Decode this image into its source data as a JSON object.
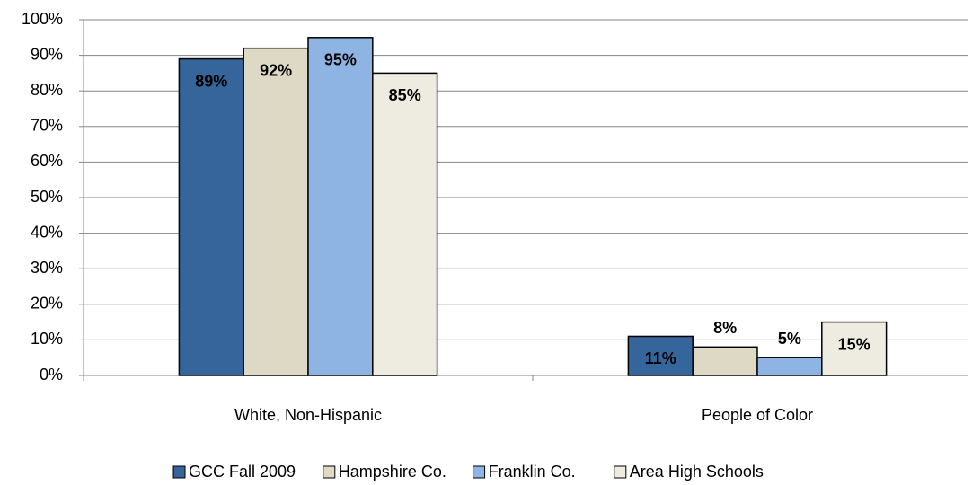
{
  "chart_data": {
    "type": "bar",
    "categories": [
      "White, Non-Hispanic",
      "People of Color"
    ],
    "series": [
      {
        "name": "GCC Fall 2009",
        "color": "#35659a",
        "values": [
          89,
          11
        ],
        "value_labels": [
          "89%",
          "11%"
        ]
      },
      {
        "name": "Hampshire Co.",
        "color": "#ddd9c4",
        "values": [
          92,
          8
        ],
        "value_labels": [
          "92%",
          "8%"
        ]
      },
      {
        "name": "Franklin Co.",
        "color": "#8eb4e3",
        "values": [
          95,
          5
        ],
        "value_labels": [
          "95%",
          "5%"
        ]
      },
      {
        "name": "Area High Schools",
        "color": "#eeece1",
        "values": [
          85,
          15
        ],
        "value_labels": [
          "85%",
          "15%"
        ]
      }
    ],
    "ylim": [
      0,
      100
    ],
    "yticks": [
      {
        "value": 0,
        "label": "0%"
      },
      {
        "value": 10,
        "label": "10%"
      },
      {
        "value": 20,
        "label": "20%"
      },
      {
        "value": 30,
        "label": "30%"
      },
      {
        "value": 40,
        "label": "40%"
      },
      {
        "value": 50,
        "label": "50%"
      },
      {
        "value": 60,
        "label": "60%"
      },
      {
        "value": 70,
        "label": "70%"
      },
      {
        "value": 80,
        "label": "80%"
      },
      {
        "value": 90,
        "label": "90%"
      },
      {
        "value": 100,
        "label": "100%"
      }
    ],
    "grid": true,
    "legend": "bottom"
  }
}
